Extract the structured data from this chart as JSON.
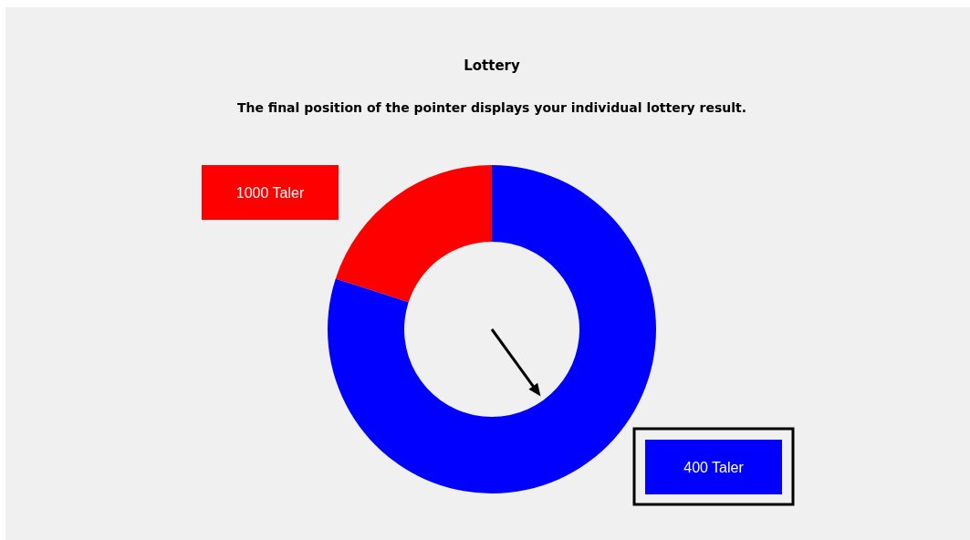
{
  "chart_data": {
    "type": "donut",
    "title": "Lottery",
    "subtitle": "The final position of the pointer displays your individual lottery result.",
    "categories": [
      "1000 Taler",
      "400 Taler"
    ],
    "values": [
      20,
      80
    ],
    "colors": [
      "#ff0000",
      "#0000ff"
    ],
    "needle": "400 Taler"
  }
}
